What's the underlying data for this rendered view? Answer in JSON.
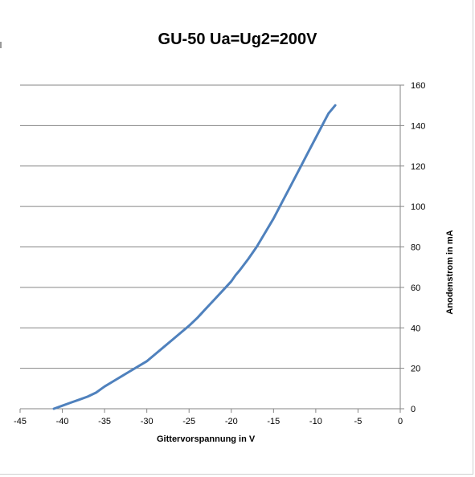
{
  "chart_data": {
    "type": "line",
    "title": "GU-50 Ua=Ug2=200V",
    "xlabel": "Gittervorspannung  in V",
    "ylabel": "Anodenstrom in mA",
    "xlim": [
      -45,
      0
    ],
    "ylim": [
      0,
      160
    ],
    "xticks": [
      -45,
      -40,
      -35,
      -30,
      -25,
      -20,
      -15,
      -10,
      -5,
      0
    ],
    "yticks": [
      0,
      20,
      40,
      60,
      80,
      100,
      120,
      140,
      160
    ],
    "grid": "horizontal",
    "y_axis_side": "right",
    "legend": "none",
    "series": [
      {
        "color": "#4f81bd",
        "x": [
          -41,
          -40,
          -39,
          -38,
          -37,
          -36,
          -35,
          -34,
          -33,
          -32,
          -31,
          -30,
          -29,
          -28,
          -27,
          -26,
          -25,
          -24,
          -23,
          -22,
          -21,
          -20,
          -19.5,
          -19,
          -18,
          -17,
          -16,
          -15,
          -14,
          -13,
          -12,
          -11,
          -10,
          -9,
          -8.5,
          -7.7
        ],
        "y": [
          0,
          1.5,
          3,
          4.5,
          6,
          8,
          11,
          13.5,
          16,
          18.5,
          21,
          23.5,
          27,
          30.5,
          34,
          37.5,
          41,
          45,
          49.5,
          54,
          58.5,
          63,
          66,
          68.5,
          74,
          80,
          87,
          94,
          102,
          110,
          118,
          126,
          134,
          142,
          146,
          150
        ]
      }
    ]
  }
}
